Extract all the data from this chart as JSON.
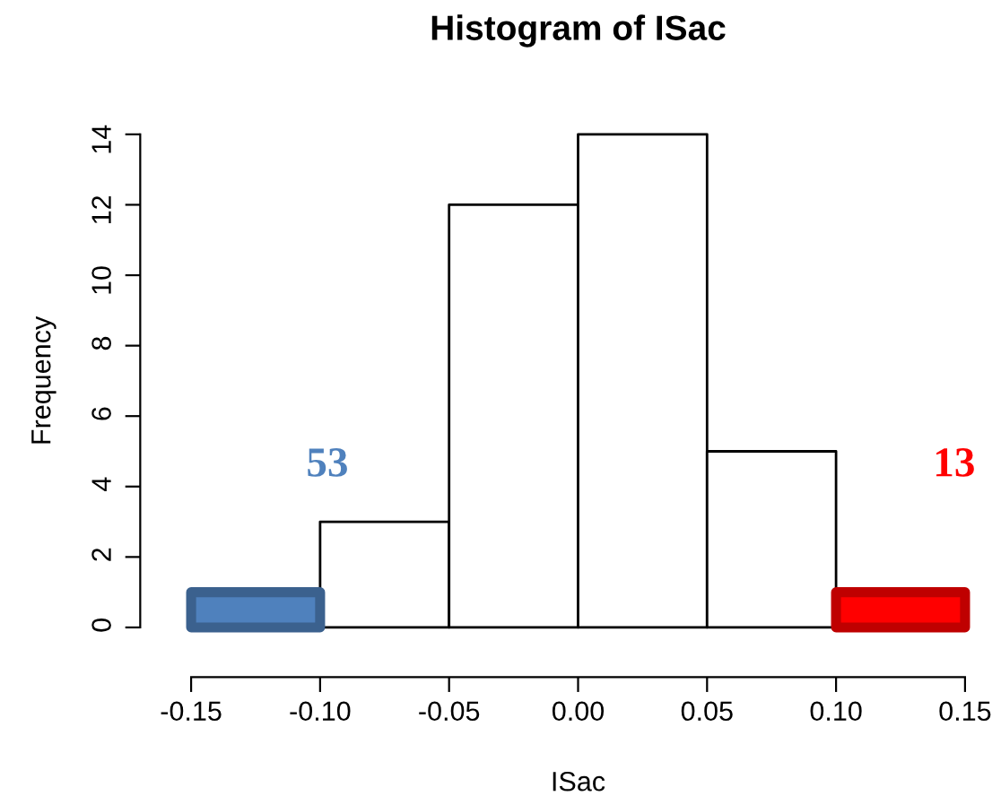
{
  "chart_data": {
    "type": "histogram",
    "title": "Histogram of ISac",
    "xlabel": "ISac",
    "ylabel": "Frequency",
    "bins": [
      -0.15,
      -0.1,
      -0.05,
      0.0,
      0.05,
      0.1,
      0.15
    ],
    "values": [
      1,
      3,
      12,
      14,
      5,
      1
    ],
    "colors": [
      "#4f81bd",
      "#ffffff",
      "#ffffff",
      "#ffffff",
      "#ffffff",
      "#ff0000"
    ],
    "xlim": [
      -0.15,
      0.15
    ],
    "ylim": [
      0,
      14
    ],
    "xticks": [
      {
        "value": -0.15,
        "label": "-0.15"
      },
      {
        "value": -0.1,
        "label": "-0.10"
      },
      {
        "value": -0.05,
        "label": "-0.05"
      },
      {
        "value": 0.0,
        "label": "0.00"
      },
      {
        "value": 0.05,
        "label": "0.05"
      },
      {
        "value": 0.1,
        "label": "0.10"
      },
      {
        "value": 0.15,
        "label": "0.15"
      }
    ],
    "yticks": [
      0,
      2,
      4,
      6,
      8,
      10,
      12,
      14
    ],
    "annotations": [
      "53",
      "13"
    ],
    "grid": false,
    "legend": false
  }
}
